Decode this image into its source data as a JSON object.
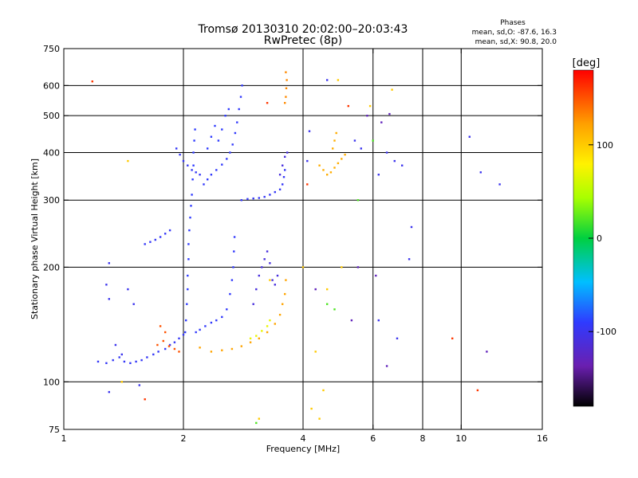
{
  "chart_data": {
    "type": "scatter",
    "title": "Tromsø 20130310 20:02:00–20:03:43",
    "subtitle": "RwPretec (8p)",
    "xlabel": "Frequency [MHz]",
    "ylabel": "Stationary phase Virtual Height [km]",
    "xscale": "log",
    "yscale": "log",
    "xlim": [
      1,
      16
    ],
    "ylim": [
      75,
      750
    ],
    "x_ticks": [
      {
        "v": 1,
        "label": "1"
      },
      {
        "v": 2,
        "label": "2"
      },
      {
        "v": 4,
        "label": "4"
      },
      {
        "v": 6,
        "label": "6"
      },
      {
        "v": 8,
        "label": "8"
      },
      {
        "v": 10,
        "label": "10"
      },
      {
        "v": 16,
        "label": "16"
      }
    ],
    "x_grid": [
      2,
      4,
      6,
      8,
      10
    ],
    "y_ticks": [
      {
        "v": 75,
        "label": "75"
      },
      {
        "v": 100,
        "label": "100"
      },
      {
        "v": 200,
        "label": "200"
      },
      {
        "v": 300,
        "label": "300"
      },
      {
        "v": 400,
        "label": "400"
      },
      {
        "v": 500,
        "label": "500"
      },
      {
        "v": 600,
        "label": "600"
      },
      {
        "v": 750,
        "label": "750"
      }
    ],
    "y_grid": [
      100,
      200,
      300,
      400,
      500,
      600
    ],
    "grid": true,
    "stats": {
      "header": "Phases",
      "line1": "mean, sd,O: -87.6, 16.3",
      "line2": "mean, sd,X:  90.8, 20.0"
    },
    "colorbar": {
      "label": "[deg]",
      "range": [
        -180,
        180
      ],
      "ticks": [
        {
          "v": 100,
          "label": "100"
        },
        {
          "v": 0,
          "label": "0"
        },
        {
          "v": -100,
          "label": "-100"
        }
      ]
    },
    "traces": [
      {
        "phase": -95,
        "points": [
          [
            1.22,
            113
          ],
          [
            1.28,
            112
          ],
          [
            1.33,
            114
          ],
          [
            1.38,
            116
          ],
          [
            1.42,
            113
          ],
          [
            1.47,
            112
          ],
          [
            1.52,
            113
          ],
          [
            1.57,
            114
          ],
          [
            1.62,
            116
          ],
          [
            1.68,
            118
          ],
          [
            1.73,
            120
          ],
          [
            1.8,
            122
          ],
          [
            1.85,
            125
          ],
          [
            1.9,
            127
          ],
          [
            1.95,
            130
          ],
          [
            2.0,
            133
          ]
        ]
      },
      {
        "phase": -90,
        "points": [
          [
            2.02,
            135
          ],
          [
            2.03,
            145
          ],
          [
            2.04,
            160
          ],
          [
            2.05,
            175
          ],
          [
            2.05,
            190
          ],
          [
            2.06,
            210
          ],
          [
            2.06,
            230
          ],
          [
            2.07,
            250
          ],
          [
            2.08,
            270
          ],
          [
            2.09,
            290
          ],
          [
            2.1,
            310
          ],
          [
            2.11,
            340
          ],
          [
            2.12,
            370
          ],
          [
            2.12,
            400
          ],
          [
            2.13,
            430
          ],
          [
            2.14,
            460
          ]
        ]
      },
      {
        "phase": -95,
        "points": [
          [
            1.92,
            410
          ],
          [
            1.96,
            395
          ],
          [
            2.0,
            380
          ],
          [
            2.05,
            370
          ],
          [
            2.1,
            360
          ],
          [
            2.15,
            355
          ],
          [
            2.2,
            350
          ]
        ]
      },
      {
        "phase": -92,
        "points": [
          [
            2.15,
            135
          ],
          [
            2.2,
            137
          ],
          [
            2.27,
            140
          ],
          [
            2.35,
            143
          ],
          [
            2.42,
            145
          ],
          [
            2.5,
            148
          ],
          [
            2.57,
            155
          ],
          [
            2.62,
            170
          ],
          [
            2.65,
            185
          ],
          [
            2.67,
            200
          ],
          [
            2.68,
            220
          ],
          [
            2.69,
            240
          ]
        ]
      },
      {
        "phase": -92,
        "points": [
          [
            2.25,
            330
          ],
          [
            2.3,
            340
          ],
          [
            2.35,
            350
          ],
          [
            2.42,
            360
          ],
          [
            2.5,
            372
          ],
          [
            2.57,
            385
          ],
          [
            2.62,
            400
          ],
          [
            2.66,
            420
          ],
          [
            2.7,
            450
          ],
          [
            2.73,
            480
          ],
          [
            2.76,
            520
          ],
          [
            2.79,
            560
          ],
          [
            2.81,
            600
          ]
        ]
      },
      {
        "phase": -90,
        "points": [
          [
            2.3,
            410
          ],
          [
            2.35,
            440
          ],
          [
            2.4,
            470
          ],
          [
            2.45,
            430
          ],
          [
            2.5,
            460
          ],
          [
            2.55,
            500
          ],
          [
            2.6,
            520
          ]
        ]
      },
      {
        "phase": -95,
        "points": [
          [
            2.8,
            300
          ],
          [
            2.9,
            302
          ],
          [
            3.0,
            303
          ],
          [
            3.1,
            304
          ],
          [
            3.2,
            306
          ],
          [
            3.3,
            310
          ],
          [
            3.4,
            315
          ],
          [
            3.5,
            320
          ],
          [
            3.55,
            330
          ],
          [
            3.58,
            345
          ],
          [
            3.6,
            360
          ]
        ]
      },
      {
        "phase": -110,
        "points": [
          [
            3.0,
            160
          ],
          [
            3.05,
            175
          ],
          [
            3.1,
            190
          ],
          [
            3.15,
            200
          ],
          [
            3.2,
            210
          ],
          [
            3.25,
            220
          ],
          [
            3.3,
            205
          ],
          [
            3.35,
            185
          ],
          [
            3.4,
            180
          ],
          [
            3.45,
            190
          ]
        ]
      },
      {
        "phase": -110,
        "points": [
          [
            3.5,
            350
          ],
          [
            3.55,
            370
          ],
          [
            3.6,
            390
          ],
          [
            3.65,
            400
          ]
        ]
      },
      {
        "phase": -95,
        "points": [
          [
            1.6,
            230
          ],
          [
            1.65,
            233
          ],
          [
            1.7,
            236
          ],
          [
            1.75,
            240
          ],
          [
            1.8,
            245
          ],
          [
            1.85,
            250
          ]
        ]
      },
      {
        "phase": 120,
        "points": [
          [
            2.2,
            123
          ],
          [
            2.35,
            120
          ],
          [
            2.5,
            121
          ],
          [
            2.65,
            122
          ],
          [
            2.8,
            124
          ],
          [
            2.95,
            127
          ],
          [
            3.1,
            130
          ],
          [
            3.25,
            135
          ],
          [
            3.4,
            142
          ],
          [
            3.5,
            150
          ],
          [
            3.55,
            160
          ],
          [
            3.6,
            170
          ],
          [
            3.62,
            185
          ]
        ]
      },
      {
        "phase": 115,
        "points": [
          [
            4.4,
            370
          ],
          [
            4.5,
            360
          ],
          [
            4.6,
            350
          ],
          [
            4.7,
            355
          ],
          [
            4.8,
            365
          ],
          [
            4.9,
            375
          ],
          [
            5.0,
            385
          ],
          [
            5.1,
            395
          ],
          [
            4.75,
            410
          ],
          [
            4.8,
            430
          ],
          [
            4.85,
            450
          ]
        ]
      },
      {
        "phase": 130,
        "points": [
          [
            3.6,
            540
          ],
          [
            3.62,
            560
          ],
          [
            3.63,
            590
          ],
          [
            3.64,
            620
          ],
          [
            3.62,
            650
          ]
        ]
      },
      {
        "phase": 150,
        "points": [
          [
            1.72,
            125
          ],
          [
            1.78,
            128
          ],
          [
            1.84,
            124
          ],
          [
            1.9,
            122
          ],
          [
            1.95,
            120
          ],
          [
            1.8,
            135
          ],
          [
            1.75,
            140
          ]
        ]
      },
      {
        "phase": 70,
        "points": [
          [
            2.95,
            130
          ],
          [
            3.05,
            132
          ],
          [
            3.15,
            136
          ],
          [
            3.25,
            140
          ],
          [
            3.3,
            145
          ]
        ]
      }
    ],
    "scatter": [
      {
        "phase": -100,
        "points": [
          [
            1.3,
            205
          ],
          [
            1.28,
            180
          ],
          [
            1.3,
            165
          ],
          [
            1.45,
            175
          ],
          [
            1.5,
            160
          ],
          [
            1.35,
            125
          ],
          [
            1.4,
            118
          ],
          [
            1.3,
            94
          ],
          [
            1.55,
            98
          ],
          [
            4.6,
            620
          ],
          [
            4.15,
            455
          ],
          [
            4.1,
            380
          ],
          [
            5.4,
            430
          ],
          [
            5.6,
            410
          ],
          [
            6.5,
            400
          ],
          [
            6.8,
            380
          ],
          [
            7.1,
            370
          ],
          [
            6.2,
            350
          ],
          [
            7.5,
            255
          ],
          [
            7.4,
            210
          ],
          [
            6.2,
            145
          ],
          [
            6.9,
            130
          ],
          [
            10.5,
            440
          ],
          [
            12.5,
            330
          ],
          [
            11.2,
            355
          ]
        ]
      },
      {
        "phase": -130,
        "points": [
          [
            5.5,
            200
          ],
          [
            6.1,
            190
          ],
          [
            6.5,
            110
          ],
          [
            5.3,
            145
          ],
          [
            4.3,
            175
          ],
          [
            6.6,
            505
          ],
          [
            5.8,
            500
          ],
          [
            6.3,
            480
          ],
          [
            11.6,
            120
          ]
        ]
      },
      {
        "phase": 100,
        "points": [
          [
            1.45,
            380
          ],
          [
            1.4,
            100
          ],
          [
            4.2,
            85
          ],
          [
            4.4,
            80
          ],
          [
            4.6,
            175
          ],
          [
            5.0,
            200
          ],
          [
            6.7,
            585
          ],
          [
            4.9,
            620
          ],
          [
            5.9,
            530
          ],
          [
            4.3,
            120
          ],
          [
            4.5,
            95
          ],
          [
            3.1,
            80
          ],
          [
            3.3,
            185
          ],
          [
            4.0,
            200
          ]
        ]
      },
      {
        "phase": 160,
        "points": [
          [
            1.18,
            615
          ],
          [
            1.6,
            90
          ],
          [
            3.25,
            540
          ],
          [
            4.1,
            330
          ],
          [
            9.5,
            130
          ],
          [
            11.0,
            95
          ],
          [
            5.2,
            530
          ]
        ]
      },
      {
        "phase": 20,
        "points": [
          [
            3.05,
            78
          ],
          [
            4.6,
            160
          ],
          [
            4.8,
            155
          ],
          [
            5.5,
            300
          ],
          [
            6.0,
            430
          ]
        ]
      }
    ]
  }
}
